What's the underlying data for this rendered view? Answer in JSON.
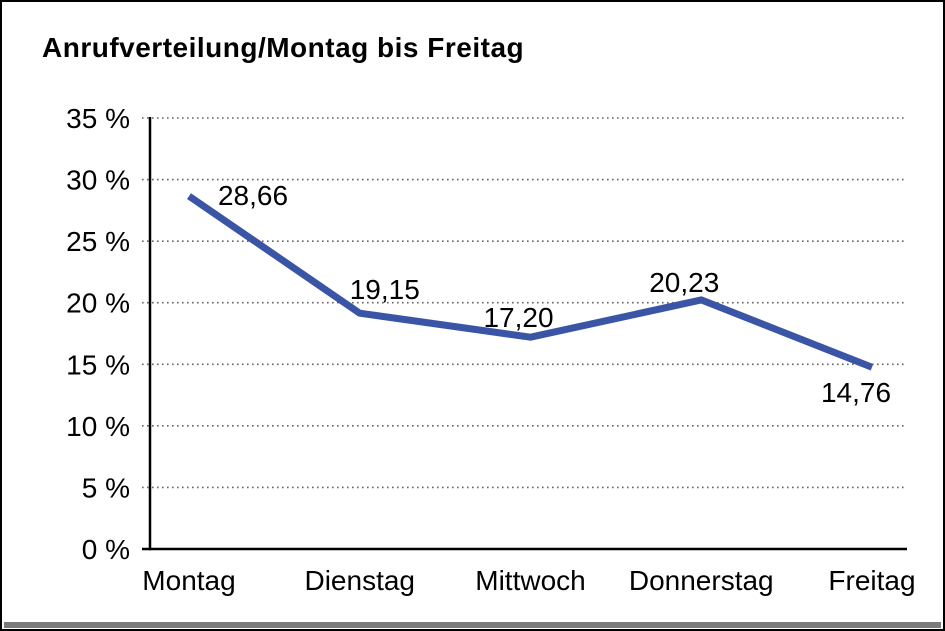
{
  "window": {
    "background": "#ffffff",
    "border_color": "#000000",
    "shadow_color": "#7b7b7b",
    "text_color": "#000000",
    "grid_color": "#666666"
  },
  "chart_data": {
    "type": "line",
    "title": "Anrufverteilung/Montag bis Freitag",
    "categories": [
      "Montag",
      "Dienstag",
      "Mittwoch",
      "Donnerstag",
      "Freitag"
    ],
    "series": [
      {
        "name": "Anrufverteilung",
        "values": [
          28.66,
          19.15,
          17.2,
          20.23,
          14.76
        ]
      }
    ],
    "point_labels": [
      "28,66",
      "19,15",
      "17,20",
      "20,23",
      "14,76"
    ],
    "y_ticks": [
      {
        "label": "35 %",
        "value": 35
      },
      {
        "label": "30 %",
        "value": 30
      },
      {
        "label": "25 %",
        "value": 25
      },
      {
        "label": "20 %",
        "value": 20
      },
      {
        "label": "15 %",
        "value": 15
      },
      {
        "label": "10 %",
        "value": 10
      },
      {
        "label": "5 %",
        "value": 5
      },
      {
        "label": "0 %",
        "value": 0
      }
    ],
    "ylim": [
      0,
      35
    ],
    "xlabel": "",
    "ylabel": "",
    "grid": "dotted-horizontal",
    "legend_position": "none",
    "line_color": "#3A55A5"
  }
}
